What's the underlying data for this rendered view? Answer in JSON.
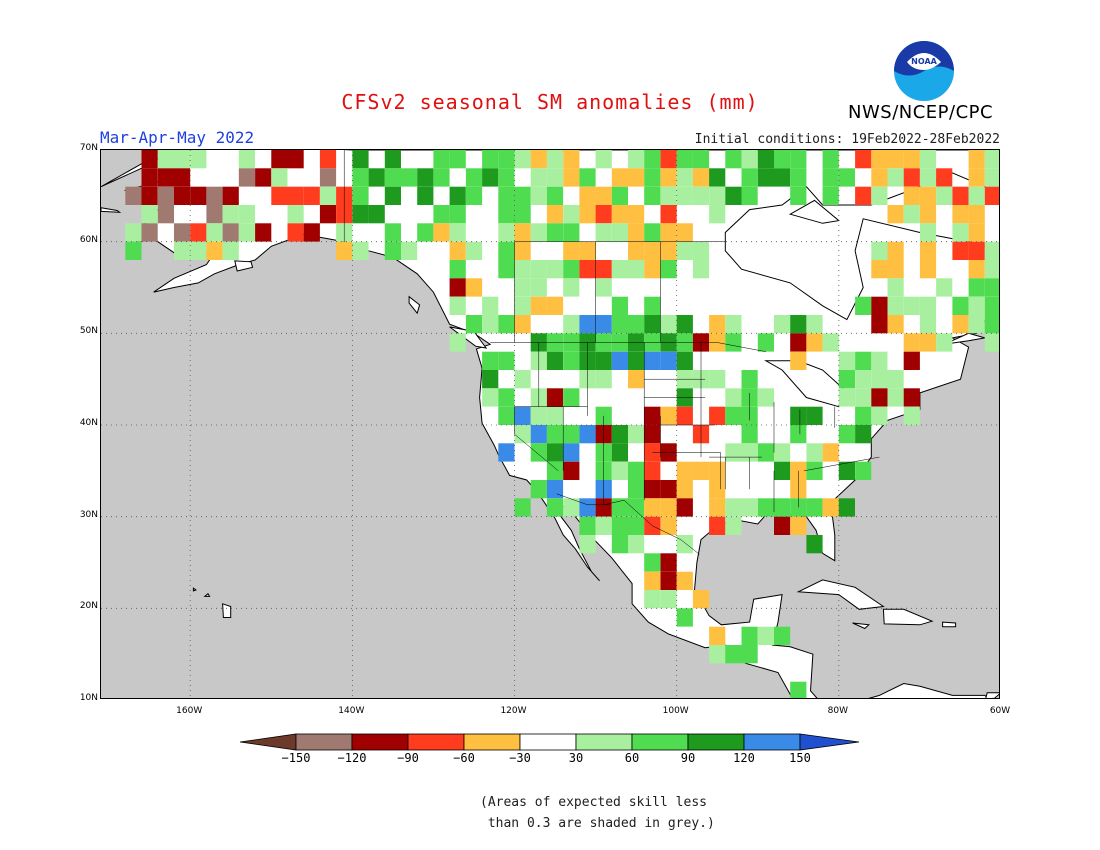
{
  "title": "CFSv2 seasonal SM anomalies (mm)",
  "period": "Mar-Apr-May 2022",
  "initial_conditions": "Initial conditions: 19Feb2022-28Feb2022",
  "agency": "NWS/NCEP/CPC",
  "logo_text": "NOAA",
  "map": {
    "lat_labels": [
      "70N",
      "60N",
      "50N",
      "40N",
      "30N",
      "20N",
      "10N"
    ],
    "lon_labels": [
      "160W",
      "140W",
      "120W",
      "100W",
      "80W",
      "60W"
    ],
    "lat_range": [
      10,
      70
    ],
    "lon_range": [
      -171,
      -60
    ],
    "grid": "dotted every 10 degrees",
    "ocean_color": "#c8c8c8",
    "land_color": "#ffffff"
  },
  "colorbar": {
    "labels": [
      "-150",
      "-120",
      "-90",
      "-60",
      "-30",
      "30",
      "60",
      "90",
      "120",
      "150"
    ],
    "colors": [
      "#6b3a2a",
      "#a07a70",
      "#a00000",
      "#ff3c1e",
      "#ffbf40",
      "#ffffff",
      "#a8f0a0",
      "#50dc50",
      "#1e9a1e",
      "#3a8ae8",
      "#2050d0"
    ]
  },
  "note": "(Areas of expected skill less\n than 0.3 are shaded in grey.)"
}
